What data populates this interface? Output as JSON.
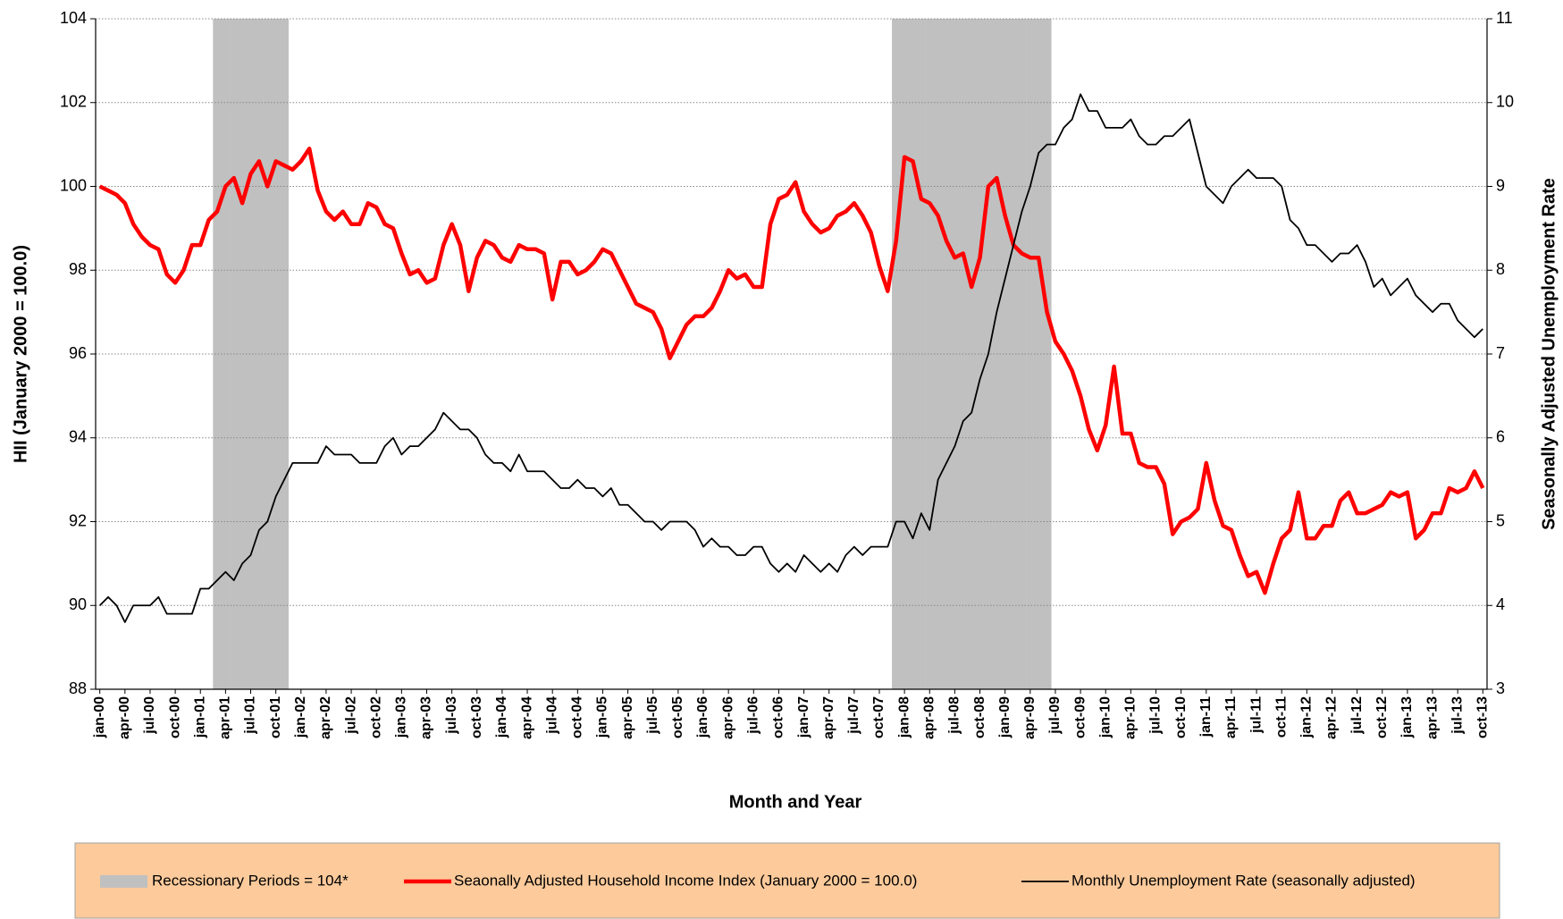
{
  "chart_data": {
    "type": "line",
    "xlabel": "Month and Year",
    "ylabel": "HII (January 2000 = 100.0)",
    "y2label": "Seasonally Adjusted Unemployment Rate",
    "grid": true,
    "ylim": [
      88,
      104
    ],
    "yticks": [
      88,
      90,
      92,
      94,
      96,
      98,
      100,
      102,
      104
    ],
    "y2lim": [
      3,
      11
    ],
    "y2ticks": [
      3,
      4,
      5,
      6,
      7,
      8,
      9,
      10,
      11
    ],
    "categories": [
      "jan-00",
      null,
      null,
      "apr-00",
      null,
      null,
      "jul-00",
      null,
      null,
      "oct-00",
      null,
      null,
      "jan-01",
      null,
      null,
      "apr-01",
      null,
      null,
      "jul-01",
      null,
      null,
      "oct-01",
      null,
      null,
      "jan-02",
      null,
      null,
      "apr-02",
      null,
      null,
      "jul-02",
      null,
      null,
      "oct-02",
      null,
      null,
      "jan-03",
      null,
      null,
      "apr-03",
      null,
      null,
      "jul-03",
      null,
      null,
      "oct-03",
      null,
      null,
      "jan-04",
      null,
      null,
      "apr-04",
      null,
      null,
      "jul-04",
      null,
      null,
      "oct-04",
      null,
      null,
      "jan-05",
      null,
      null,
      "apr-05",
      null,
      null,
      "jul-05",
      null,
      null,
      "oct-05",
      null,
      null,
      "jan-06",
      null,
      null,
      "apr-06",
      null,
      null,
      "jul-06",
      null,
      null,
      "oct-06",
      null,
      null,
      "jan-07",
      null,
      null,
      "apr-07",
      null,
      null,
      "jul-07",
      null,
      null,
      "oct-07",
      null,
      null,
      "jan-08",
      null,
      null,
      "apr-08",
      null,
      null,
      "jul-08",
      null,
      null,
      "oct-08",
      null,
      null,
      "jan-09",
      null,
      null,
      "apr-09",
      null,
      null,
      "jul-09",
      null,
      null,
      "oct-09",
      null,
      null,
      "jan-10",
      null,
      null,
      "apr-10",
      null,
      null,
      "jul-10",
      null,
      null,
      "oct-10",
      null,
      null,
      "jan-11",
      null,
      null,
      "apr-11",
      null,
      null,
      "jul-11",
      null,
      null,
      "oct-11",
      null,
      null,
      "jan-12",
      null,
      null,
      "apr-12",
      null,
      null,
      "jul-12",
      null,
      null,
      "oct-12",
      null,
      null,
      "jan-13",
      null,
      null,
      "apr-13",
      null,
      null,
      "jul-13",
      null,
      null,
      "oct-13"
    ],
    "series": [
      {
        "name": "Recessionary Periods = 104*",
        "type": "bar",
        "color": "#c0c0c0",
        "values": [
          null,
          null,
          null,
          null,
          null,
          null,
          null,
          null,
          null,
          null,
          null,
          null,
          null,
          null,
          104,
          104,
          104,
          104,
          104,
          104,
          104,
          104,
          104,
          null,
          null,
          null,
          null,
          null,
          null,
          null,
          null,
          null,
          null,
          null,
          null,
          null,
          null,
          null,
          null,
          null,
          null,
          null,
          null,
          null,
          null,
          null,
          null,
          null,
          null,
          null,
          null,
          null,
          null,
          null,
          null,
          null,
          null,
          null,
          null,
          null,
          null,
          null,
          null,
          null,
          null,
          null,
          null,
          null,
          null,
          null,
          null,
          null,
          null,
          null,
          null,
          null,
          null,
          null,
          null,
          null,
          null,
          null,
          null,
          null,
          null,
          null,
          null,
          null,
          null,
          null,
          null,
          null,
          null,
          null,
          null,
          104,
          104,
          104,
          104,
          104,
          104,
          104,
          104,
          104,
          104,
          104,
          104,
          104,
          104,
          104,
          104,
          104,
          104,
          104,
          null,
          null,
          null,
          null,
          null,
          null,
          null,
          null,
          null,
          null,
          null,
          null,
          null,
          null,
          null,
          null,
          null,
          null,
          null,
          null,
          null,
          null,
          null,
          null,
          null,
          null,
          null,
          null,
          null,
          null,
          null,
          null,
          null,
          null,
          null,
          null,
          null,
          null,
          null,
          null,
          null,
          null,
          null,
          null,
          null,
          null,
          null,
          null,
          null,
          null,
          null,
          null
        ]
      },
      {
        "name": "Seaonally Adjusted Household Income Index (January 2000 = 100.0)",
        "type": "line",
        "color": "#ff0000",
        "width": 4.5,
        "values": [
          100.0,
          99.9,
          99.8,
          99.6,
          99.1,
          98.8,
          98.6,
          98.5,
          97.9,
          97.7,
          98.0,
          98.6,
          98.6,
          99.2,
          99.4,
          100.0,
          100.2,
          99.6,
          100.3,
          100.6,
          100.0,
          100.6,
          100.5,
          100.4,
          100.6,
          100.9,
          99.9,
          99.4,
          99.2,
          99.4,
          99.1,
          99.1,
          99.6,
          99.5,
          99.1,
          99.0,
          98.4,
          97.9,
          98.0,
          97.7,
          97.8,
          98.6,
          99.1,
          98.6,
          97.5,
          98.3,
          98.7,
          98.6,
          98.3,
          98.2,
          98.6,
          98.5,
          98.5,
          98.4,
          97.3,
          98.2,
          98.2,
          97.9,
          98.0,
          98.2,
          98.5,
          98.4,
          98.0,
          97.6,
          97.2,
          97.1,
          97.0,
          96.6,
          95.9,
          96.3,
          96.7,
          96.9,
          96.9,
          97.1,
          97.5,
          98.0,
          97.8,
          97.9,
          97.6,
          97.6,
          99.1,
          99.7,
          99.8,
          100.1,
          99.4,
          99.1,
          98.9,
          99.0,
          99.3,
          99.4,
          99.6,
          99.3,
          98.9,
          98.1,
          97.5,
          98.7,
          100.7,
          100.6,
          99.7,
          99.6,
          99.3,
          98.7,
          98.3,
          98.4,
          97.6,
          98.3,
          100.0,
          100.2,
          99.3,
          98.6,
          98.4,
          98.3,
          98.3,
          97.0,
          96.3,
          96.0,
          95.6,
          95.0,
          94.2,
          93.7,
          94.3,
          95.7,
          94.1,
          94.1,
          93.4,
          93.3,
          93.3,
          92.9,
          91.7,
          92.0,
          92.1,
          92.3,
          93.4,
          92.5,
          91.9,
          91.8,
          91.2,
          90.7,
          90.8,
          90.3,
          91.0,
          91.6,
          91.8,
          92.7,
          91.6,
          91.6,
          91.9,
          91.9,
          92.5,
          92.7,
          92.2,
          92.2,
          92.3,
          92.4,
          92.7,
          92.6,
          92.7,
          91.6,
          91.8,
          92.2,
          92.2,
          92.8,
          92.7,
          92.8,
          93.2,
          92.8
        ]
      },
      {
        "name": "Monthly Unemployment Rate (seasonally adjusted)",
        "type": "line",
        "axis": "y2",
        "color": "#000000",
        "width": 1.8,
        "values": [
          4.0,
          4.1,
          4.0,
          3.8,
          4.0,
          4.0,
          4.0,
          4.1,
          3.9,
          3.9,
          3.9,
          3.9,
          4.2,
          4.2,
          4.3,
          4.4,
          4.3,
          4.5,
          4.6,
          4.9,
          5.0,
          5.3,
          5.5,
          5.7,
          5.7,
          5.7,
          5.7,
          5.9,
          5.8,
          5.8,
          5.8,
          5.7,
          5.7,
          5.7,
          5.9,
          6.0,
          5.8,
          5.9,
          5.9,
          6.0,
          6.1,
          6.3,
          6.2,
          6.1,
          6.1,
          6.0,
          5.8,
          5.7,
          5.7,
          5.6,
          5.8,
          5.6,
          5.6,
          5.6,
          5.5,
          5.4,
          5.4,
          5.5,
          5.4,
          5.4,
          5.3,
          5.4,
          5.2,
          5.2,
          5.1,
          5.0,
          5.0,
          4.9,
          5.0,
          5.0,
          5.0,
          4.9,
          4.7,
          4.8,
          4.7,
          4.7,
          4.6,
          4.6,
          4.7,
          4.7,
          4.5,
          4.4,
          4.5,
          4.4,
          4.6,
          4.5,
          4.4,
          4.5,
          4.4,
          4.6,
          4.7,
          4.6,
          4.7,
          4.7,
          4.7,
          5.0,
          5.0,
          4.8,
          5.1,
          4.9,
          5.5,
          5.7,
          5.9,
          6.2,
          6.3,
          6.7,
          7.0,
          7.5,
          7.9,
          8.3,
          8.7,
          9.0,
          9.4,
          9.5,
          9.5,
          9.7,
          9.8,
          10.1,
          9.9,
          9.9,
          9.7,
          9.7,
          9.7,
          9.8,
          9.6,
          9.5,
          9.5,
          9.6,
          9.6,
          9.7,
          9.8,
          9.4,
          9.0,
          8.9,
          8.8,
          9.0,
          9.1,
          9.2,
          9.1,
          9.1,
          9.1,
          9.0,
          8.6,
          8.5,
          8.3,
          8.3,
          8.2,
          8.1,
          8.2,
          8.2,
          8.3,
          8.1,
          7.8,
          7.9,
          7.7,
          7.8,
          7.9,
          7.7,
          7.6,
          7.5,
          7.6,
          7.6,
          7.4,
          7.3,
          7.2,
          7.3
        ]
      }
    ]
  }
}
